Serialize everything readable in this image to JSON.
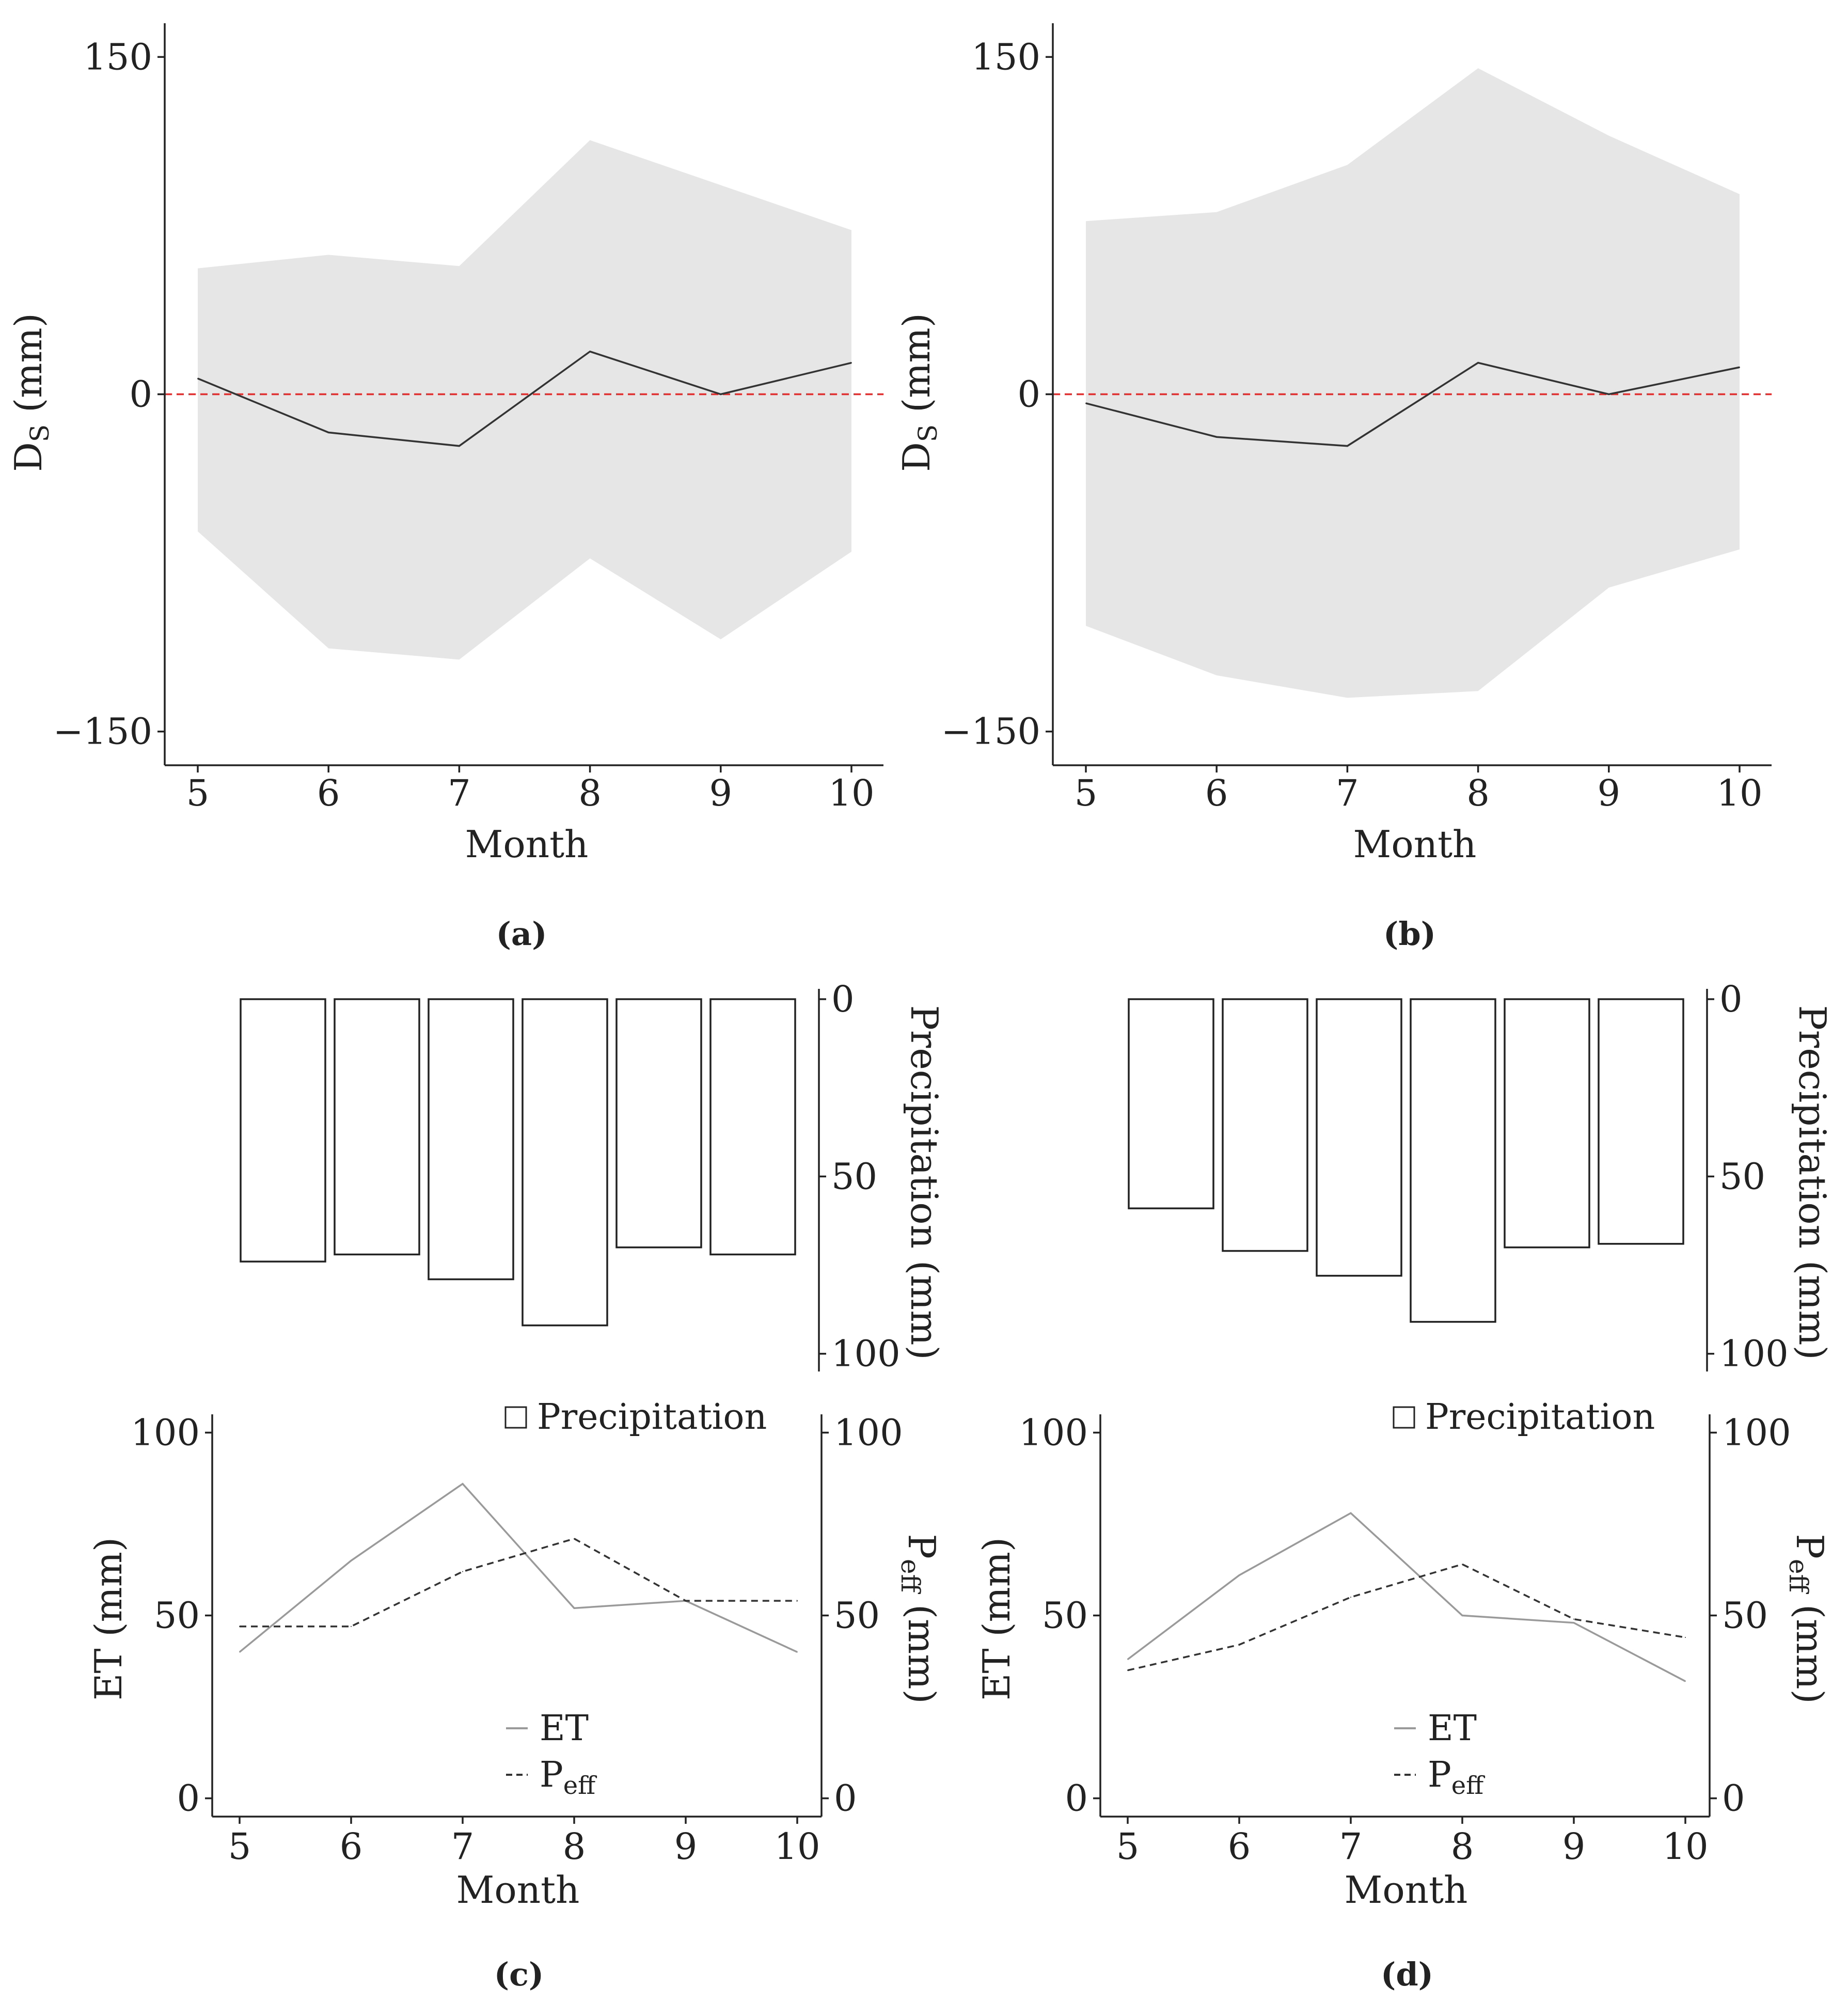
{
  "colors": {
    "band": "#e6e6e6",
    "line": "#333333",
    "zero_line": "#e03030",
    "et_line": "#9a9a9a",
    "peff_line": "#333333",
    "bar_stroke": "#222222",
    "axis": "#222222"
  },
  "chart_data": [
    {
      "id": "a",
      "type": "area",
      "panel_label": "(a)",
      "xlabel": "Month",
      "ylabel": "D",
      "ylabel_sub": "S",
      "ylabel_unit": " (mm)",
      "x": [
        5,
        6,
        7,
        8,
        9,
        10
      ],
      "x_tick_labels": [
        "5",
        "6",
        "7",
        "8",
        "9",
        "10"
      ],
      "y_ticks": [
        150,
        0,
        -150
      ],
      "y_tick_labels": [
        "150",
        "0",
        "−150"
      ],
      "ylim": [
        -165,
        165
      ],
      "mean": [
        7,
        -17,
        -23,
        19,
        0,
        14
      ],
      "upper": [
        56,
        62,
        57,
        113,
        93,
        73
      ],
      "lower": [
        -61,
        -113,
        -118,
        -73,
        -109,
        -70
      ],
      "reference_line": 0
    },
    {
      "id": "b",
      "type": "area",
      "panel_label": "(b)",
      "xlabel": "Month",
      "ylabel": "D",
      "ylabel_sub": "S",
      "ylabel_unit": " (mm)",
      "x": [
        5,
        6,
        7,
        8,
        9,
        10
      ],
      "x_tick_labels": [
        "5",
        "6",
        "7",
        "8",
        "9",
        "10"
      ],
      "y_ticks": [
        150,
        0,
        -150
      ],
      "y_tick_labels": [
        "150",
        "0",
        "−150"
      ],
      "ylim": [
        -165,
        165
      ],
      "mean": [
        -4,
        -19,
        -23,
        14,
        0,
        12
      ],
      "upper": [
        77,
        81,
        102,
        145,
        115,
        89
      ],
      "lower": [
        -103,
        -125,
        -135,
        -132,
        -86,
        -69
      ],
      "reference_line": 0
    },
    {
      "id": "c",
      "panel_label": "(c)",
      "precipitation": {
        "type": "bar",
        "x": [
          5,
          6,
          7,
          8,
          9,
          10
        ],
        "values": [
          74,
          72,
          79,
          92,
          70,
          72
        ],
        "ylabel": "Precipitation (mm)",
        "y_ticks": [
          0,
          50,
          100
        ],
        "y_tick_labels": [
          "0",
          "50",
          "100"
        ],
        "ylim": [
          0,
          105
        ],
        "legend": "Precipitation"
      },
      "water": {
        "type": "line",
        "x": [
          5,
          6,
          7,
          8,
          9,
          10
        ],
        "x_tick_labels": [
          "5",
          "6",
          "7",
          "8",
          "9",
          "10"
        ],
        "xlabel": "Month",
        "series": [
          {
            "name": "ET",
            "values": [
              40,
              65,
              86,
              52,
              54,
              40
            ]
          },
          {
            "name": "P_eff",
            "values": [
              47,
              47,
              62,
              71,
              54,
              54
            ]
          }
        ],
        "ylabel_left": "ET (mm)",
        "ylabel_right": "P",
        "ylabel_right_sub": "eff",
        "ylabel_right_unit": " (mm)",
        "y_ticks": [
          0,
          50,
          100
        ],
        "y_tick_labels": [
          "0",
          "50",
          "100"
        ],
        "ylim": [
          -5,
          105
        ],
        "legend_et": "ET",
        "legend_peff": "P",
        "legend_peff_sub": "eff"
      }
    },
    {
      "id": "d",
      "panel_label": "(d)",
      "precipitation": {
        "type": "bar",
        "x": [
          5,
          6,
          7,
          8,
          9,
          10
        ],
        "values": [
          59,
          71,
          78,
          91,
          70,
          69
        ],
        "ylabel": "Precipitation (mm)",
        "y_ticks": [
          0,
          50,
          100
        ],
        "y_tick_labels": [
          "0",
          "50",
          "100"
        ],
        "ylim": [
          0,
          105
        ],
        "legend": "Precipitation"
      },
      "water": {
        "type": "line",
        "x": [
          5,
          6,
          7,
          8,
          9,
          10
        ],
        "x_tick_labels": [
          "5",
          "6",
          "7",
          "8",
          "9",
          "10"
        ],
        "xlabel": "Month",
        "series": [
          {
            "name": "ET",
            "values": [
              38,
              61,
              78,
              50,
              48,
              32
            ]
          },
          {
            "name": "P_eff",
            "values": [
              35,
              42,
              55,
              64,
              49,
              44
            ]
          }
        ],
        "ylabel_left": "ET (mm)",
        "ylabel_right": "P",
        "ylabel_right_sub": "eff",
        "ylabel_right_unit": " (mm)",
        "y_ticks": [
          0,
          50,
          100
        ],
        "y_tick_labels": [
          "0",
          "50",
          "100"
        ],
        "ylim": [
          -5,
          105
        ],
        "legend_et": "ET",
        "legend_peff": "P",
        "legend_peff_sub": "eff"
      }
    }
  ]
}
